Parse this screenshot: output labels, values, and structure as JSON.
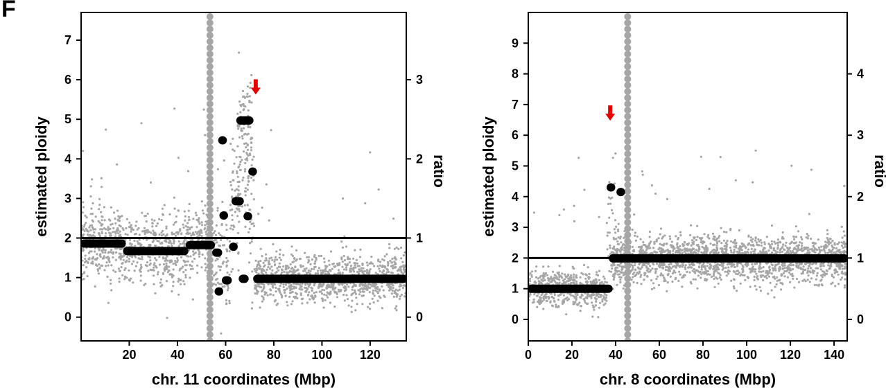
{
  "panel_label": "F",
  "colors": {
    "scatter": "#a6a6a6",
    "segments": "#000000",
    "arrow": "#e60000",
    "centromere": "#a6a6a6"
  },
  "chart_data": [
    {
      "type": "scatter",
      "xlabel": "chr. 11 coordinates (Mbp)",
      "ylabel": "estimated ploidy",
      "y2label": "ratio",
      "xlim": [
        0,
        135
      ],
      "ylim": [
        -0.6,
        7.7
      ],
      "y2lim": [
        -0.3,
        3.85
      ],
      "xticks": [
        20,
        40,
        60,
        80,
        100,
        120
      ],
      "yticks": [
        0,
        1,
        2,
        3,
        4,
        5,
        6,
        7
      ],
      "y2ticks": [
        0,
        1,
        2,
        3
      ],
      "reference_ploidy": 2,
      "centromere_x": 53.5,
      "arrow": {
        "x": 72.5,
        "y": 5.8
      },
      "segments": [
        {
          "x0": 0,
          "x1": 18,
          "y": 1.86
        },
        {
          "x0": 18,
          "x1": 44,
          "y": 1.67
        },
        {
          "x0": 44,
          "x1": 55,
          "y": 1.82
        },
        {
          "x0": 55,
          "x1": 58,
          "y": 1.63
        },
        {
          "x0": 57.5,
          "x1": 58.5,
          "y": 4.47
        },
        {
          "x0": 58,
          "x1": 59,
          "y": 2.57
        },
        {
          "x0": 59,
          "x1": 62,
          "y": 0.93
        },
        {
          "x0": 62,
          "x1": 64,
          "y": 1.78
        },
        {
          "x0": 63,
          "x1": 67,
          "y": 2.93
        },
        {
          "x0": 56,
          "x1": 57,
          "y": 0.65
        },
        {
          "x0": 65,
          "x1": 71,
          "y": 4.97
        },
        {
          "x0": 68,
          "x1": 69,
          "y": 2.55
        },
        {
          "x0": 70,
          "x1": 71.5,
          "y": 3.68
        },
        {
          "x0": 66,
          "x1": 69,
          "y": 0.97
        },
        {
          "x0": 72,
          "x1": 135,
          "y": 0.97
        }
      ],
      "noise_regions": [
        {
          "x0": 0,
          "x1": 18,
          "center": 1.86,
          "sd": 0.45,
          "n": 320
        },
        {
          "x0": 18,
          "x1": 44,
          "center": 1.67,
          "sd": 0.42,
          "n": 420
        },
        {
          "x0": 44,
          "x1": 53,
          "center": 1.9,
          "sd": 0.45,
          "n": 160
        },
        {
          "x0": 55,
          "x1": 58,
          "center": 1.63,
          "sd": 0.6,
          "n": 40
        },
        {
          "x0": 58,
          "x1": 62,
          "center": 1.2,
          "sd": 0.7,
          "n": 50
        },
        {
          "x0": 62,
          "x1": 66,
          "center": 2.7,
          "sd": 0.9,
          "n": 60
        },
        {
          "x0": 65,
          "x1": 71,
          "center": 4.6,
          "sd": 0.9,
          "n": 110
        },
        {
          "x0": 68,
          "x1": 72,
          "center": 2.6,
          "sd": 1.0,
          "n": 40
        },
        {
          "x0": 72,
          "x1": 135,
          "center": 0.97,
          "sd": 0.3,
          "n": 1100
        }
      ]
    },
    {
      "type": "scatter",
      "xlabel": "chr. 8 coordinates (Mbp)",
      "ylabel": "estimated ploidy",
      "y2label": "ratio",
      "xlim": [
        0,
        146
      ],
      "ylim": [
        -0.7,
        10.0
      ],
      "y2lim": [
        -0.35,
        5.0
      ],
      "xticks": [
        0,
        20,
        40,
        60,
        80,
        100,
        120,
        140
      ],
      "yticks": [
        0,
        1,
        2,
        3,
        4,
        5,
        6,
        7,
        8,
        9
      ],
      "y2ticks": [
        0,
        1,
        2,
        3,
        4
      ],
      "reference_ploidy": 2,
      "centromere_x": 45.5,
      "arrow": {
        "x": 37.5,
        "y": 6.7
      },
      "segments": [
        {
          "x0": 0,
          "x1": 38,
          "y": 1.0
        },
        {
          "x0": 36.5,
          "x1": 38.5,
          "y": 4.3
        },
        {
          "x0": 41,
          "x1": 42.5,
          "y": 4.15
        },
        {
          "x0": 37.5,
          "x1": 146,
          "y": 1.99
        }
      ],
      "noise_regions": [
        {
          "x0": 0,
          "x1": 36,
          "center": 1.0,
          "sd": 0.3,
          "n": 560
        },
        {
          "x0": 36,
          "x1": 40,
          "center": 3.0,
          "sd": 1.2,
          "n": 30
        },
        {
          "x0": 38,
          "x1": 146,
          "center": 1.98,
          "sd": 0.38,
          "n": 1900
        }
      ]
    }
  ]
}
